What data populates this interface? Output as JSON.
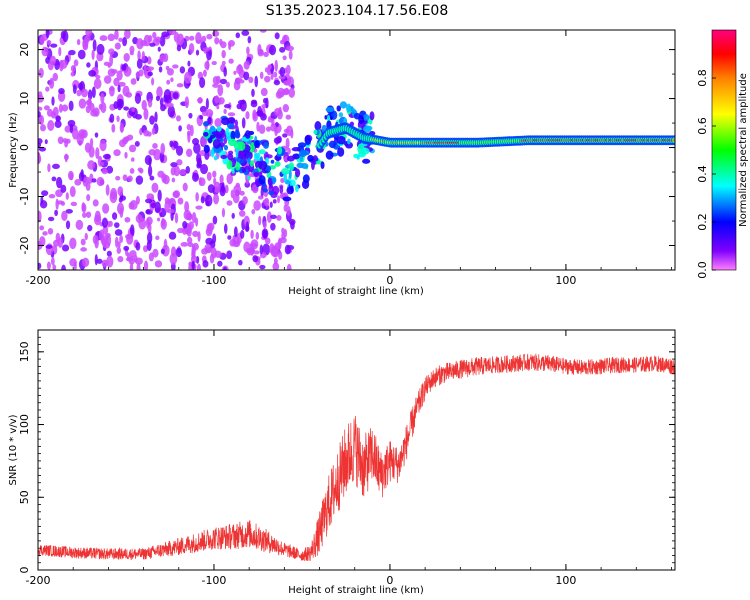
{
  "figure": {
    "title": "S135.2023.104.17.56.E08"
  },
  "chart_data": [
    {
      "type": "heatmap",
      "xlabel": "Height of straight line (km)",
      "ylabel": "Frequency (Hz)",
      "xlim": [
        -200,
        162
      ],
      "ylim": [
        -25,
        24
      ],
      "xticks": [
        -200,
        -100,
        0,
        100
      ],
      "yticks": [
        -20,
        -10,
        0,
        10,
        20
      ],
      "colorbar": {
        "label": "Normalized spectral amplitude",
        "ticks": [
          0.0,
          0.2,
          0.4,
          0.6,
          0.8
        ],
        "range": [
          0,
          1
        ],
        "colors": [
          "#ff80ff",
          "#8000ff",
          "#0000ff",
          "#00ffff",
          "#00ff00",
          "#ffff00",
          "#ff8000",
          "#ff0000",
          "#ff0080"
        ]
      },
      "regions": [
        {
          "x_range": [
            -200,
            -55
          ],
          "y_range": [
            -25,
            24
          ],
          "pattern": "scattered noise",
          "amplitude": 0.15
        },
        {
          "x_range": [
            -55,
            -10
          ],
          "y_range": [
            -13,
            6
          ],
          "pattern": "converging signal",
          "amplitude": 0.5
        },
        {
          "x_range": [
            -10,
            162
          ],
          "y_range": [
            0,
            2
          ],
          "pattern": "steady tone",
          "amplitude": 0.95
        }
      ],
      "signal_track": [
        {
          "x": -100,
          "y": 2
        },
        {
          "x": -85,
          "y": 0
        },
        {
          "x": -70,
          "y": -4
        },
        {
          "x": -55,
          "y": -6
        },
        {
          "x": -45,
          "y": -2
        },
        {
          "x": -35,
          "y": 3
        },
        {
          "x": -25,
          "y": 4
        },
        {
          "x": -15,
          "y": 2
        },
        {
          "x": 0,
          "y": 1
        },
        {
          "x": 20,
          "y": 1
        },
        {
          "x": 50,
          "y": 1
        },
        {
          "x": 80,
          "y": 1.5
        },
        {
          "x": 110,
          "y": 1.5
        },
        {
          "x": 162,
          "y": 1.5
        }
      ]
    },
    {
      "type": "line",
      "xlabel": "Height of straight line (km)",
      "ylabel": "SNR (10 * v/v)",
      "xlim": [
        -200,
        162
      ],
      "ylim": [
        0,
        165
      ],
      "xticks": [
        -200,
        -100,
        0,
        100
      ],
      "yticks": [
        0,
        50,
        100,
        150
      ],
      "color": "#ee3333",
      "series": [
        {
          "x": [
            -200,
            -180,
            -160,
            -140,
            -120,
            -100,
            -90,
            -80,
            -70,
            -60,
            -50,
            -45,
            -40,
            -35,
            -30,
            -25,
            -20,
            -15,
            -10,
            -5,
            0,
            5,
            10,
            15,
            20,
            25,
            30,
            40,
            50,
            60,
            70,
            80,
            90,
            100,
            110,
            120,
            130,
            140,
            150,
            162
          ],
          "y": [
            14,
            12,
            11,
            11,
            16,
            22,
            23,
            25,
            20,
            14,
            10,
            12,
            25,
            45,
            60,
            75,
            85,
            70,
            80,
            65,
            75,
            72,
            90,
            110,
            125,
            132,
            135,
            138,
            140,
            141,
            142,
            143,
            142,
            140,
            139,
            140,
            141,
            141,
            142,
            140
          ],
          "spread": [
            8,
            8,
            8,
            8,
            12,
            16,
            18,
            20,
            16,
            10,
            8,
            12,
            30,
            40,
            45,
            50,
            50,
            45,
            40,
            35,
            30,
            25,
            25,
            20,
            15,
            14,
            14,
            13,
            13,
            12,
            12,
            12,
            12,
            11,
            11,
            11,
            11,
            11,
            11,
            12
          ]
        }
      ]
    }
  ]
}
